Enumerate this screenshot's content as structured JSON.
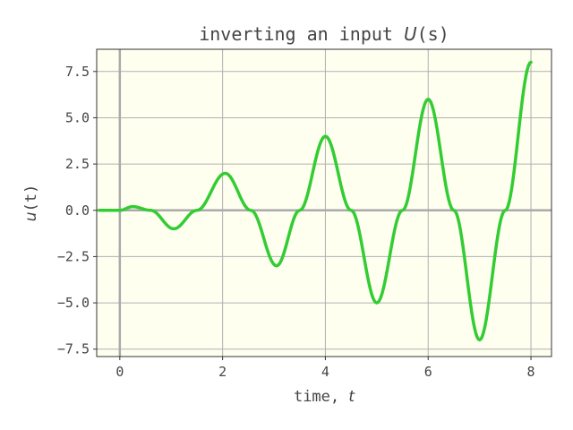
{
  "chart_data": {
    "type": "line",
    "title": {
      "prefix": "inverting an input ",
      "math": "U",
      "suffix": "(s)"
    },
    "xlabel": {
      "prefix": "time, ",
      "math": "t"
    },
    "ylabel": {
      "math": "u",
      "suffix": "(t)"
    },
    "xlim": [
      -0.45,
      8.4
    ],
    "ylim": [
      -7.9,
      8.7
    ],
    "x_ticks": [
      0,
      2,
      4,
      6,
      8
    ],
    "x_tick_labels": [
      "0",
      "2",
      "4",
      "6",
      "8"
    ],
    "y_ticks": [
      7.5,
      5.0,
      2.5,
      0.0,
      -2.5,
      -5.0,
      -7.5
    ],
    "y_tick_labels": [
      "7.5",
      "5.0",
      "2.5",
      "0.0",
      "−2.5",
      "−5.0",
      "−7.5"
    ],
    "grid": true,
    "series": [
      {
        "color": "#33cc33",
        "x": [
          -0.4,
          0,
          0.25,
          0.6,
          1.05,
          1.5,
          2.05,
          2.55,
          3.05,
          3.5,
          4.0,
          4.5,
          5.0,
          5.5,
          6.0,
          6.5,
          7.0,
          7.5,
          8.0
        ],
        "y": [
          0.0,
          0.0,
          0.2,
          0.0,
          -1.0,
          0.0,
          2.0,
          0.0,
          -3.0,
          0.0,
          4.0,
          0.0,
          -5.0,
          0.0,
          6.0,
          0.0,
          -7.0,
          0.0,
          8.0
        ]
      }
    ],
    "colors": {
      "plot_background": "#fffff0",
      "grid": "#b0b0b0",
      "zero_lines": "#aaaaaa",
      "text": "#444444"
    }
  }
}
